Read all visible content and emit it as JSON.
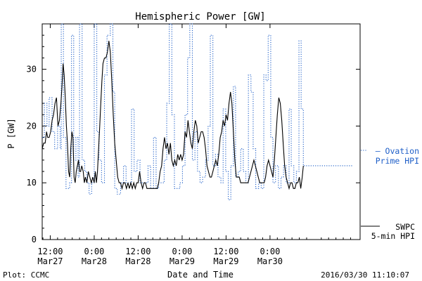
{
  "chart_data": {
    "type": "line",
    "title": "Hemispheric Power [GW]",
    "xlabel": "Date and Time",
    "ylabel": "P [GW]",
    "ylim": [
      0,
      38
    ],
    "yticks": [
      0,
      10,
      20,
      30
    ],
    "xlim_hours": [
      -2.2,
      84.6
    ],
    "xticks": [
      {
        "t": 0,
        "time": "12:00",
        "date": "Mar27"
      },
      {
        "t": 12,
        "time": "0:00",
        "date": "Mar28"
      },
      {
        "t": 24,
        "time": "12:00",
        "date": "Mar28"
      },
      {
        "t": 36,
        "time": "0:00",
        "date": "Mar29"
      },
      {
        "t": 48,
        "time": "12:00",
        "date": "Mar29"
      },
      {
        "t": 60,
        "time": "0:00",
        "date": "Mar30"
      }
    ],
    "series": [
      {
        "name_lines": [
          "Ovation",
          "Prime HPI"
        ],
        "color": "#1f5fc8",
        "style": "dotted-step",
        "points": [
          [
            -2.2,
            18
          ],
          [
            -1.6,
            24
          ],
          [
            -0.9,
            20
          ],
          [
            -0.3,
            25
          ],
          [
            0.5,
            19
          ],
          [
            1.2,
            16
          ],
          [
            2.0,
            20
          ],
          [
            2.7,
            16
          ],
          [
            3.0,
            38
          ],
          [
            3.6,
            18
          ],
          [
            4.3,
            9
          ],
          [
            5.3,
            10
          ],
          [
            5.8,
            36
          ],
          [
            6.4,
            14
          ],
          [
            7.0,
            18
          ],
          [
            7.6,
            11
          ],
          [
            8.0,
            38
          ],
          [
            8.7,
            14
          ],
          [
            9.4,
            12
          ],
          [
            10.0,
            10
          ],
          [
            10.6,
            8
          ],
          [
            11.3,
            10
          ],
          [
            12.0,
            38
          ],
          [
            12.7,
            19
          ],
          [
            13.3,
            14
          ],
          [
            14.0,
            10
          ],
          [
            14.8,
            29
          ],
          [
            15.5,
            36
          ],
          [
            16.4,
            38
          ],
          [
            17.1,
            26
          ],
          [
            17.6,
            9
          ],
          [
            18.3,
            8
          ],
          [
            19.2,
            10
          ],
          [
            20.0,
            13
          ],
          [
            20.7,
            10
          ],
          [
            21.5,
            10
          ],
          [
            22.2,
            23
          ],
          [
            22.9,
            12
          ],
          [
            23.7,
            14
          ],
          [
            24.5,
            10
          ],
          [
            25.2,
            10
          ],
          [
            26.0,
            10
          ],
          [
            26.7,
            13
          ],
          [
            27.4,
            9
          ],
          [
            28.2,
            18
          ],
          [
            28.9,
            9
          ],
          [
            29.6,
            10
          ],
          [
            30.4,
            10
          ],
          [
            31.1,
            14
          ],
          [
            31.8,
            24
          ],
          [
            32.5,
            38
          ],
          [
            33.2,
            22
          ],
          [
            33.9,
            9
          ],
          [
            34.6,
            9
          ],
          [
            35.4,
            10
          ],
          [
            36.1,
            13
          ],
          [
            36.8,
            22
          ],
          [
            37.5,
            32
          ],
          [
            38.1,
            38
          ],
          [
            38.8,
            14
          ],
          [
            39.5,
            19
          ],
          [
            40.2,
            12
          ],
          [
            40.9,
            10
          ],
          [
            41.6,
            11
          ],
          [
            42.4,
            14
          ],
          [
            43.1,
            20
          ],
          [
            43.7,
            36
          ],
          [
            44.4,
            13
          ],
          [
            45.1,
            15
          ],
          [
            45.8,
            11
          ],
          [
            46.6,
            10
          ],
          [
            47.2,
            23
          ],
          [
            47.9,
            12
          ],
          [
            48.6,
            7
          ],
          [
            49.3,
            13
          ],
          [
            50.0,
            27
          ],
          [
            50.6,
            11
          ],
          [
            51.3,
            12
          ],
          [
            52.0,
            16
          ],
          [
            52.7,
            12
          ],
          [
            53.4,
            10
          ],
          [
            54.1,
            29
          ],
          [
            54.8,
            26
          ],
          [
            55.4,
            16
          ],
          [
            56.1,
            9
          ],
          [
            56.9,
            10
          ],
          [
            57.6,
            9
          ],
          [
            58.3,
            29
          ],
          [
            58.9,
            28
          ],
          [
            59.5,
            36
          ],
          [
            60.2,
            18
          ],
          [
            60.8,
            10
          ],
          [
            61.5,
            13
          ],
          [
            62.3,
            9
          ],
          [
            63.0,
            11
          ],
          [
            63.7,
            13
          ],
          [
            64.4,
            10
          ],
          [
            65.2,
            23
          ],
          [
            65.8,
            13
          ],
          [
            66.5,
            10
          ],
          [
            67.2,
            12
          ],
          [
            67.9,
            35
          ],
          [
            68.5,
            23
          ],
          [
            69.1,
            13
          ]
        ]
      },
      {
        "name_lines": [
          "SWPC",
          "5-min HPI"
        ],
        "color": "#000000",
        "style": "solid",
        "points": [
          [
            -2.2,
            16
          ],
          [
            -1.8,
            17
          ],
          [
            -1.4,
            17
          ],
          [
            -1.0,
            19
          ],
          [
            -0.7,
            18
          ],
          [
            -0.3,
            18
          ],
          [
            0.1,
            19
          ],
          [
            0.5,
            21
          ],
          [
            0.9,
            22
          ],
          [
            1.3,
            24
          ],
          [
            1.7,
            25
          ],
          [
            2.1,
            20
          ],
          [
            2.5,
            21
          ],
          [
            2.9,
            24
          ],
          [
            3.2,
            27
          ],
          [
            3.5,
            31
          ],
          [
            3.8,
            29
          ],
          [
            4.1,
            25
          ],
          [
            4.4,
            20
          ],
          [
            4.7,
            17
          ],
          [
            5.0,
            12
          ],
          [
            5.3,
            11
          ],
          [
            5.6,
            16
          ],
          [
            5.9,
            19
          ],
          [
            6.2,
            18
          ],
          [
            6.5,
            11
          ],
          [
            6.8,
            10
          ],
          [
            7.1,
            12
          ],
          [
            7.4,
            13
          ],
          [
            7.7,
            14
          ],
          [
            8.0,
            12
          ],
          [
            8.3,
            12
          ],
          [
            8.6,
            13
          ],
          [
            9.0,
            12
          ],
          [
            9.3,
            10
          ],
          [
            9.6,
            11
          ],
          [
            10.0,
            10
          ],
          [
            10.4,
            12
          ],
          [
            10.8,
            11
          ],
          [
            11.2,
            10
          ],
          [
            11.6,
            11
          ],
          [
            12.0,
            10
          ],
          [
            12.3,
            12
          ],
          [
            12.6,
            10
          ],
          [
            12.9,
            12
          ],
          [
            13.2,
            16
          ],
          [
            13.5,
            20
          ],
          [
            13.8,
            24
          ],
          [
            14.1,
            28
          ],
          [
            14.4,
            31
          ],
          [
            14.8,
            32
          ],
          [
            15.2,
            32
          ],
          [
            15.6,
            33
          ],
          [
            16.0,
            35
          ],
          [
            16.4,
            33
          ],
          [
            16.8,
            28
          ],
          [
            17.2,
            22
          ],
          [
            17.6,
            17
          ],
          [
            18.0,
            14
          ],
          [
            18.4,
            11
          ],
          [
            18.8,
            10
          ],
          [
            19.2,
            10
          ],
          [
            19.6,
            9
          ],
          [
            20.0,
            10
          ],
          [
            20.4,
            10
          ],
          [
            20.8,
            9
          ],
          [
            21.2,
            10
          ],
          [
            21.6,
            9
          ],
          [
            22.0,
            10
          ],
          [
            22.4,
            9
          ],
          [
            22.8,
            10
          ],
          [
            23.2,
            9
          ],
          [
            23.6,
            10
          ],
          [
            24.0,
            10
          ],
          [
            24.4,
            12
          ],
          [
            24.8,
            10
          ],
          [
            25.2,
            9
          ],
          [
            25.6,
            10
          ],
          [
            26.0,
            10
          ],
          [
            26.4,
            9
          ],
          [
            26.8,
            9
          ],
          [
            27.2,
            9
          ],
          [
            27.6,
            9
          ],
          [
            28.0,
            9
          ],
          [
            28.4,
            9
          ],
          [
            28.8,
            9
          ],
          [
            29.2,
            9
          ],
          [
            29.6,
            10
          ],
          [
            30.0,
            12
          ],
          [
            30.4,
            13
          ],
          [
            30.8,
            16
          ],
          [
            31.2,
            18
          ],
          [
            31.6,
            16
          ],
          [
            32.0,
            17
          ],
          [
            32.4,
            15
          ],
          [
            32.8,
            17
          ],
          [
            33.2,
            14
          ],
          [
            33.6,
            13
          ],
          [
            34.0,
            14
          ],
          [
            34.4,
            13
          ],
          [
            34.8,
            15
          ],
          [
            35.2,
            14
          ],
          [
            35.6,
            15
          ],
          [
            36.0,
            14
          ],
          [
            36.4,
            15
          ],
          [
            36.8,
            19
          ],
          [
            37.2,
            18
          ],
          [
            37.6,
            21
          ],
          [
            38.0,
            19
          ],
          [
            38.4,
            17
          ],
          [
            38.8,
            16
          ],
          [
            39.2,
            19
          ],
          [
            39.6,
            21
          ],
          [
            40.0,
            20
          ],
          [
            40.4,
            17
          ],
          [
            40.8,
            18
          ],
          [
            41.2,
            19
          ],
          [
            41.6,
            19
          ],
          [
            42.0,
            18
          ],
          [
            42.4,
            16
          ],
          [
            42.8,
            13
          ],
          [
            43.2,
            12
          ],
          [
            43.6,
            11
          ],
          [
            44.0,
            11
          ],
          [
            44.4,
            12
          ],
          [
            44.8,
            13
          ],
          [
            45.2,
            14
          ],
          [
            45.6,
            13
          ],
          [
            46.0,
            15
          ],
          [
            46.4,
            18
          ],
          [
            46.8,
            19
          ],
          [
            47.2,
            21
          ],
          [
            47.6,
            20
          ],
          [
            48.0,
            22
          ],
          [
            48.4,
            21
          ],
          [
            48.8,
            24
          ],
          [
            49.2,
            26
          ],
          [
            49.6,
            24
          ],
          [
            50.0,
            19
          ],
          [
            50.4,
            14
          ],
          [
            50.8,
            11
          ],
          [
            51.2,
            11
          ],
          [
            51.6,
            11
          ],
          [
            52.0,
            10
          ],
          [
            52.4,
            10
          ],
          [
            52.8,
            10
          ],
          [
            53.2,
            10
          ],
          [
            53.6,
            10
          ],
          [
            54.0,
            10
          ],
          [
            54.4,
            11
          ],
          [
            54.8,
            12
          ],
          [
            55.2,
            13
          ],
          [
            55.6,
            14
          ],
          [
            56.0,
            13
          ],
          [
            56.4,
            12
          ],
          [
            56.8,
            11
          ],
          [
            57.2,
            10
          ],
          [
            57.6,
            10
          ],
          [
            58.0,
            10
          ],
          [
            58.4,
            10
          ],
          [
            58.8,
            11
          ],
          [
            59.2,
            13
          ],
          [
            59.6,
            14
          ],
          [
            60.0,
            13
          ],
          [
            60.4,
            12
          ],
          [
            60.8,
            11
          ],
          [
            61.2,
            14
          ],
          [
            61.6,
            18
          ],
          [
            62.0,
            22
          ],
          [
            62.4,
            25
          ],
          [
            62.8,
            24
          ],
          [
            63.2,
            21
          ],
          [
            63.6,
            17
          ],
          [
            64.0,
            13
          ],
          [
            64.4,
            11
          ],
          [
            64.8,
            10
          ],
          [
            65.2,
            9
          ],
          [
            65.6,
            10
          ],
          [
            66.0,
            10
          ],
          [
            66.4,
            9
          ],
          [
            66.8,
            9
          ],
          [
            67.2,
            10
          ],
          [
            67.6,
            10
          ],
          [
            68.0,
            11
          ],
          [
            68.4,
            9
          ],
          [
            68.8,
            11
          ],
          [
            69.1,
            13
          ]
        ]
      }
    ],
    "footer": {
      "left": "Plot: CCMC",
      "right": "2016/03/30 11:10:07"
    }
  }
}
